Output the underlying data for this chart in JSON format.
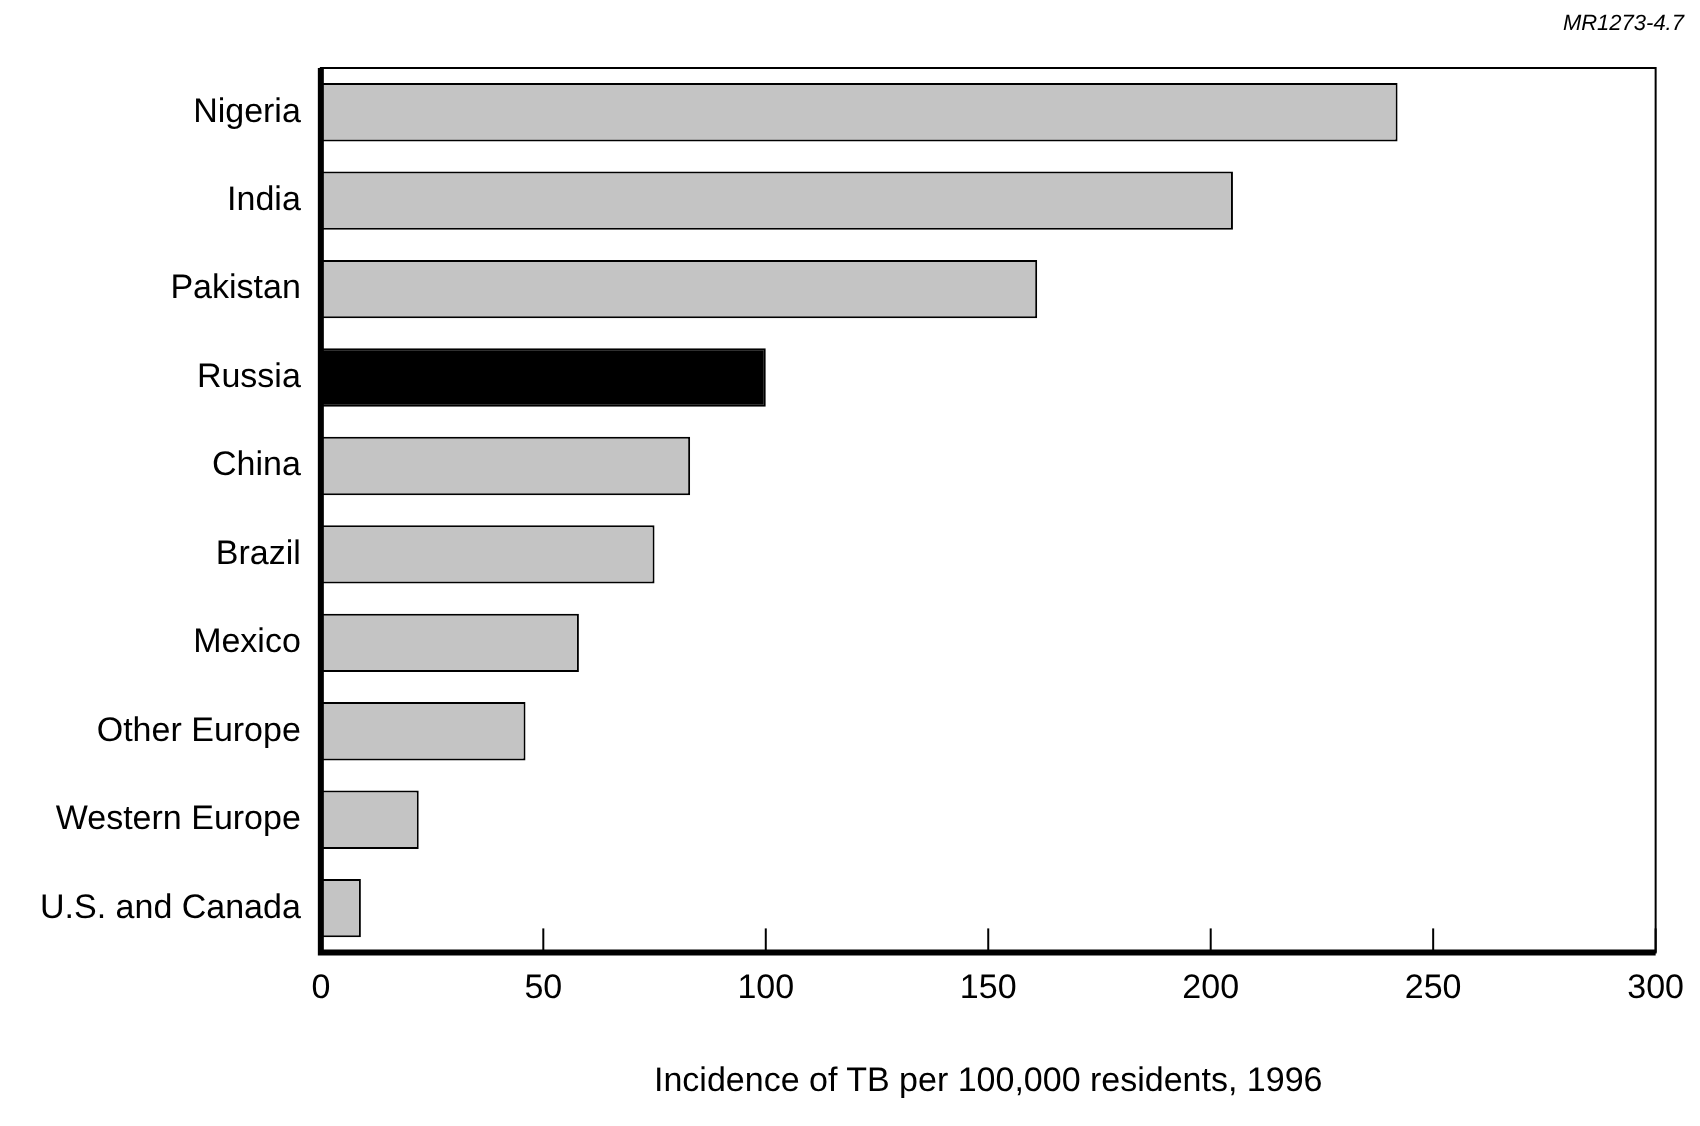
{
  "chart_data": {
    "type": "bar",
    "orientation": "horizontal",
    "xlabel": "Incidence of TB per 100,000 residents, 1996",
    "annotations": [
      "MR1273-4.7"
    ],
    "categories": [
      "Nigeria",
      "India",
      "Pakistan",
      "Russia",
      "China",
      "Brazil",
      "Mexico",
      "Other Europe",
      "Western Europe",
      "U.S. and Canada"
    ],
    "values": [
      242,
      205,
      161,
      100,
      83,
      75,
      58,
      46,
      22,
      9
    ],
    "colors": [
      "#c4c4c4",
      "#c4c4c4",
      "#c4c4c4",
      "#000000",
      "#c4c4c4",
      "#c4c4c4",
      "#c4c4c4",
      "#c4c4c4",
      "#c4c4c4",
      "#c4c4c4"
    ],
    "xlim": [
      0,
      300
    ],
    "xticks": [
      0,
      50,
      100,
      150,
      200,
      250,
      300
    ],
    "grid": false,
    "legend": false
  }
}
